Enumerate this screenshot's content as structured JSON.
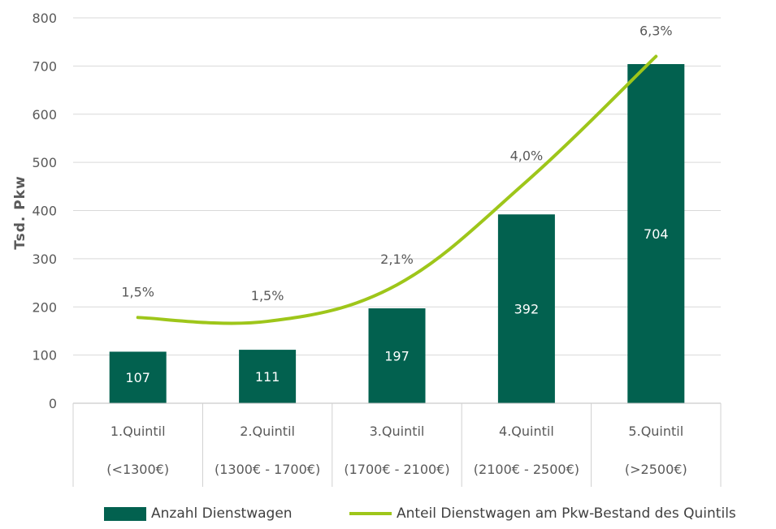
{
  "colors": {
    "bar": "#02614f",
    "line": "#9ec61a",
    "grid": "#d9d9d9",
    "axis_text": "#595959",
    "bar_label": "#ffffff"
  },
  "chart_data": {
    "type": "bar",
    "ylabel": "Tsd. Pkw",
    "ylim": [
      0,
      800
    ],
    "yticks": [
      "0",
      "100",
      "200",
      "300",
      "400",
      "500",
      "600",
      "700",
      "800"
    ],
    "grid": true,
    "legend_position": "bottom",
    "categories": [
      {
        "line1": "1.Quintil",
        "line2": "(<1300€)"
      },
      {
        "line1": "2.Quintil",
        "line2": "(1300€ - 1700€)"
      },
      {
        "line1": "3.Quintil",
        "line2": "(1700€ - 2100€)"
      },
      {
        "line1": "4.Quintil",
        "line2": "(2100€ - 2500€)"
      },
      {
        "line1": "5.Quintil",
        "line2": "(>2500€)"
      }
    ],
    "series": [
      {
        "name": "Anzahl Dienstwagen",
        "type": "bar",
        "values": [
          107,
          111,
          197,
          392,
          704
        ],
        "labels": [
          "107",
          "111",
          "197",
          "392",
          "704"
        ]
      },
      {
        "name": "Anteil Dienstwagen am Pkw-Bestand des Quintils",
        "type": "line",
        "values": [
          1.5,
          1.5,
          2.1,
          4.0,
          6.3
        ],
        "labels": [
          "1,5%",
          "1,5%",
          "2,1%",
          "4,0%",
          "6,3%"
        ]
      }
    ]
  }
}
